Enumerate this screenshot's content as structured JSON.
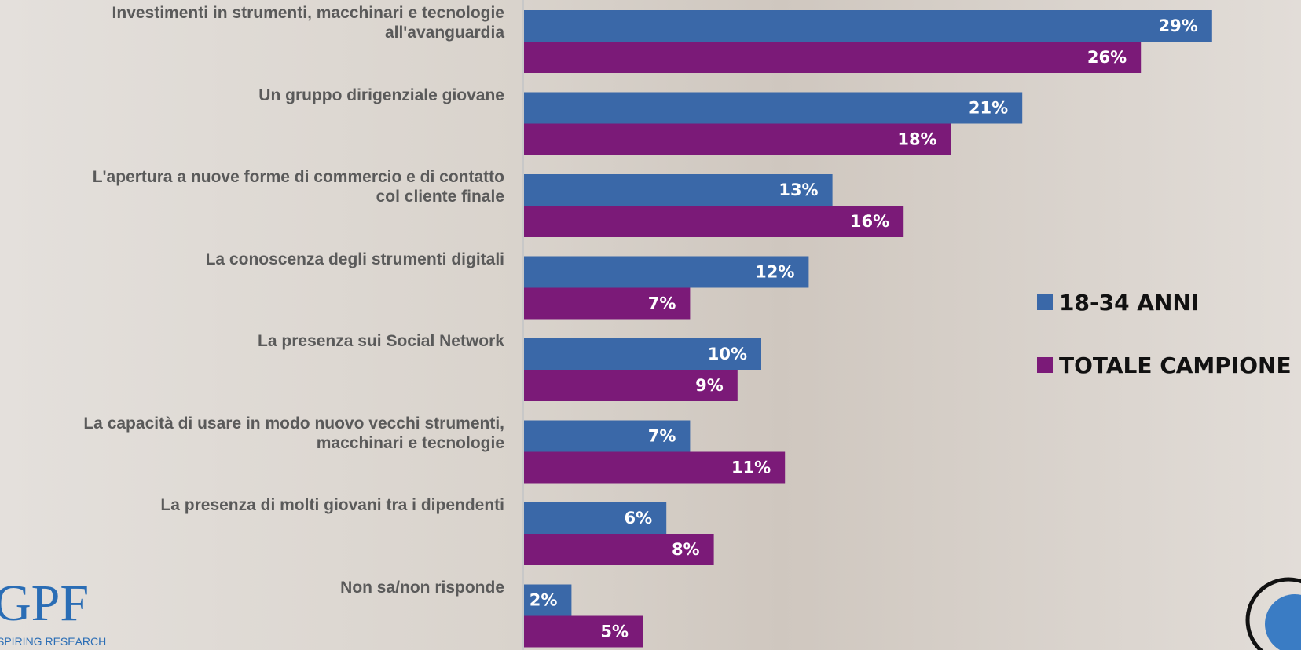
{
  "chart_data": {
    "type": "bar",
    "orientation": "horizontal",
    "categories": [
      "Investimenti in strumenti, macchinari e tecnologie\nall'avanguardia",
      "Un gruppo dirigenziale giovane",
      "L'apertura a nuove forme di commercio e di contatto\ncol cliente finale",
      "La conoscenza degli strumenti digitali",
      "La presenza sui Social Network",
      "La capacità di usare in modo nuovo vecchi strumenti,\nmacchinari e tecnologie",
      "La presenza di molti giovani tra i dipendenti",
      "Non sa/non risponde"
    ],
    "series": [
      {
        "name": "18-34 ANNI",
        "color": "#3a68a8",
        "values": [
          29,
          21,
          13,
          12,
          10,
          7,
          6,
          2
        ],
        "value_labels": [
          "29%",
          "21%",
          "13%",
          "12%",
          "10%",
          "7%",
          "6%",
          "2%"
        ]
      },
      {
        "name": "TOTALE CAMPIONE",
        "color": "#7b1a78",
        "values": [
          26,
          18,
          16,
          7,
          9,
          11,
          8,
          5
        ],
        "value_labels": [
          "26%",
          "18%",
          "16%",
          "7%",
          "9%",
          "11%",
          "8%",
          "5%"
        ]
      }
    ],
    "legend": "right"
  },
  "logo": {
    "name": "GPF",
    "tagline": "SPIRING RESEARCH"
  }
}
